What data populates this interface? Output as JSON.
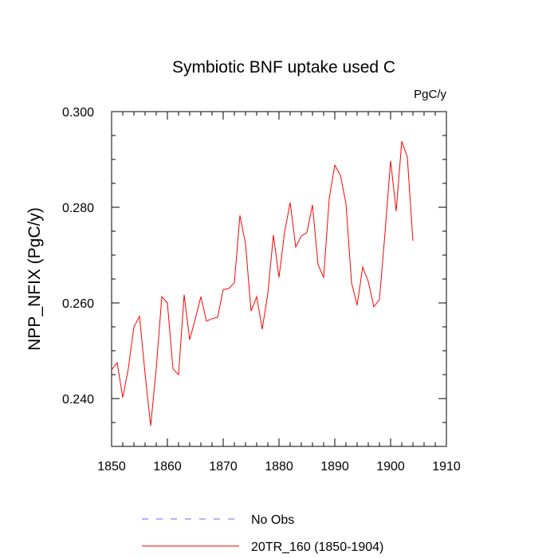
{
  "chart_data": {
    "type": "line",
    "title": "Symbiotic BNF uptake used C",
    "units": "PgC/y",
    "ylabel": "NPP_NFIX  (PgC/y)",
    "xlabel": "",
    "xlim": [
      1850,
      1910
    ],
    "ylim": [
      0.23,
      0.3
    ],
    "xticks": [
      1850,
      1860,
      1870,
      1880,
      1890,
      1900,
      1910
    ],
    "yticks": [
      0.24,
      0.26,
      0.28,
      0.3
    ],
    "ytick_labels": [
      "0.240",
      "0.260",
      "0.280",
      "0.300"
    ],
    "grid": false,
    "legend_position": "bottom",
    "legend": [
      {
        "name": "No Obs",
        "color": "#0000ff",
        "style": "dashed"
      },
      {
        "name": "20TR_160 (1850-1904)",
        "color": "#ff0000",
        "style": "solid"
      }
    ],
    "series": [
      {
        "name": "20TR_160 (1850-1904)",
        "color": "#ff0000",
        "x": [
          1850,
          1851,
          1852,
          1853,
          1854,
          1855,
          1856,
          1857,
          1858,
          1859,
          1860,
          1861,
          1862,
          1863,
          1864,
          1865,
          1866,
          1867,
          1868,
          1869,
          1870,
          1871,
          1872,
          1873,
          1874,
          1875,
          1876,
          1877,
          1878,
          1879,
          1880,
          1881,
          1882,
          1883,
          1884,
          1885,
          1886,
          1887,
          1888,
          1889,
          1890,
          1891,
          1892,
          1893,
          1894,
          1895,
          1896,
          1897,
          1898,
          1899,
          1900,
          1901,
          1902,
          1903,
          1904
        ],
        "values": [
          0.246,
          0.2475,
          0.2402,
          0.2463,
          0.255,
          0.2572,
          0.2452,
          0.2343,
          0.2463,
          0.2613,
          0.26,
          0.2462,
          0.245,
          0.2617,
          0.2523,
          0.2567,
          0.2613,
          0.2562,
          0.2567,
          0.257,
          0.2628,
          0.263,
          0.2642,
          0.2783,
          0.2723,
          0.2583,
          0.2613,
          0.2545,
          0.262,
          0.2742,
          0.2653,
          0.2748,
          0.281,
          0.2717,
          0.274,
          0.2747,
          0.2805,
          0.268,
          0.2653,
          0.2818,
          0.2888,
          0.2867,
          0.2808,
          0.2642,
          0.2595,
          0.2675,
          0.2645,
          0.2592,
          0.2607,
          0.2747,
          0.2897,
          0.2792,
          0.2938,
          0.2905,
          0.273
        ]
      }
    ]
  }
}
